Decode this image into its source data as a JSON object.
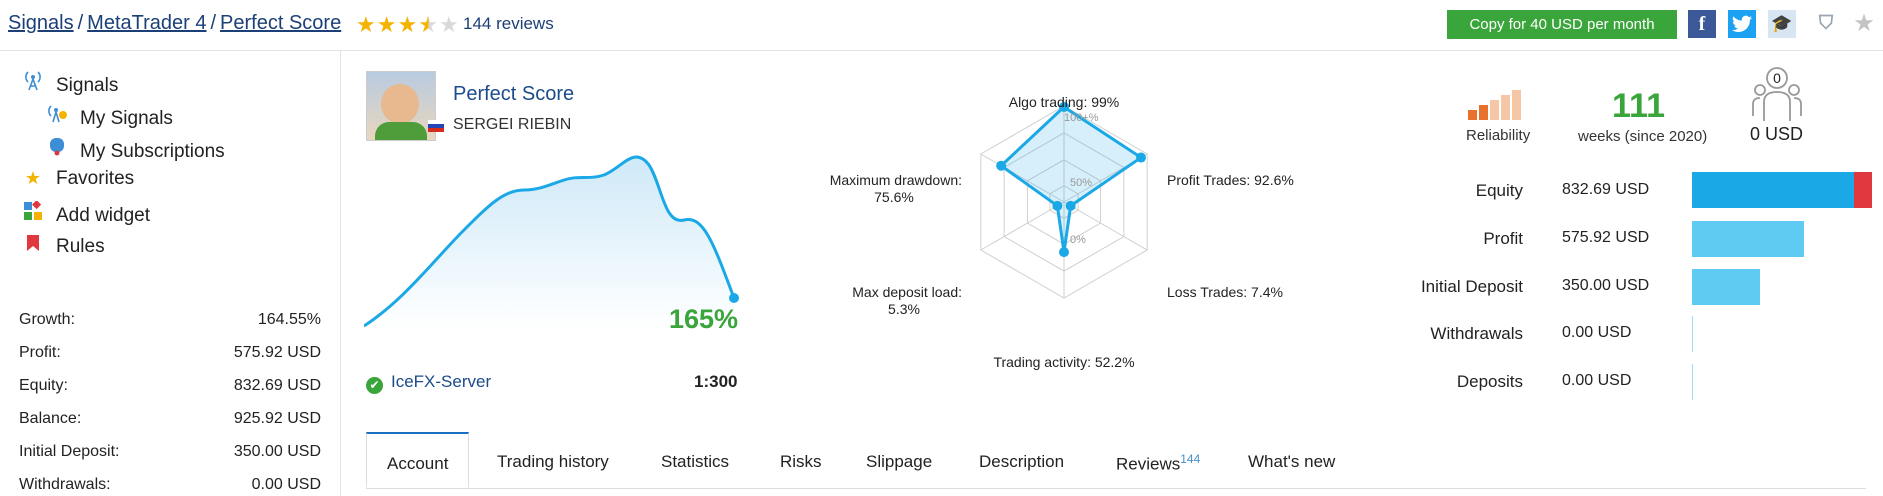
{
  "breadcrumb": {
    "items": [
      "Signals",
      "MetaTrader 4",
      "Perfect Score"
    ],
    "separator": "/"
  },
  "rating": {
    "stars": 3.5,
    "max": 5,
    "reviews_text": "144 reviews"
  },
  "copy_button": "Copy for 40 USD per month",
  "social": {
    "facebook": "f",
    "twitter": "t"
  },
  "sidebar": {
    "nav": [
      {
        "label": "Signals",
        "icon": "antenna-icon"
      },
      {
        "label": "My Signals",
        "icon": "my-signals-icon"
      },
      {
        "label": "My Subscriptions",
        "icon": "subscriptions-icon"
      },
      {
        "label": "Favorites",
        "icon": "star-icon"
      },
      {
        "label": "Add widget",
        "icon": "widget-icon"
      },
      {
        "label": "Rules",
        "icon": "bookmark-icon"
      }
    ],
    "stats": [
      {
        "label": "Growth:",
        "value": "164.55%"
      },
      {
        "label": "Profit:",
        "value": "575.92 USD"
      },
      {
        "label": "Equity:",
        "value": "832.69 USD"
      },
      {
        "label": "Balance:",
        "value": "925.92 USD"
      },
      {
        "label": "Initial Deposit:",
        "value": "350.00 USD"
      },
      {
        "label": "Withdrawals:",
        "value": "0.00 USD"
      }
    ]
  },
  "signal": {
    "title": "Perfect Score",
    "author": "SERGEI RIEBIN",
    "growth": "165%",
    "server": "IceFX-Server",
    "leverage": "1:300"
  },
  "radar": {
    "labels": {
      "algo": "Algo trading: 99%",
      "profit_trades": "Profit Trades: 92.6%",
      "loss_trades": "Loss Trades: 7.4%",
      "activity": "Trading activity: 52.2%",
      "deposit_load": "Max deposit load:",
      "deposit_load_val": "5.3%",
      "drawdown": "Maximum drawdown:",
      "drawdown_val": "75.6%"
    },
    "rings": [
      "100+%",
      "50%",
      "0%"
    ],
    "values": [
      99,
      92.6,
      7.4,
      52.2,
      5.3,
      75.6
    ]
  },
  "metrics": {
    "reliability_label": "Reliability",
    "weeks_value": "111",
    "weeks_label": "weeks (since 2020)",
    "subscribers_count": "0",
    "subscribers_usd": "0 USD"
  },
  "equity_rows": [
    {
      "label": "Equity",
      "value": "832.69 USD",
      "bar_value": 832.69
    },
    {
      "label": "Profit",
      "value": "575.92 USD",
      "bar_value": 575.92
    },
    {
      "label": "Initial Deposit",
      "value": "350.00 USD",
      "bar_value": 350.0
    },
    {
      "label": "Withdrawals",
      "value": "0.00 USD",
      "bar_value": 0
    },
    {
      "label": "Deposits",
      "value": "0.00 USD",
      "bar_value": 0
    }
  ],
  "tabs": [
    {
      "label": "Account",
      "active": true
    },
    {
      "label": "Trading history"
    },
    {
      "label": "Statistics"
    },
    {
      "label": "Risks"
    },
    {
      "label": "Slippage"
    },
    {
      "label": "Description"
    },
    {
      "label": "Reviews",
      "badge": "144"
    },
    {
      "label": "What's new"
    }
  ],
  "colors": {
    "accent": "#3aa53a",
    "link": "#1b4b8a",
    "chart": "#1ba8e6",
    "bar": "#5fcaf2",
    "bar_dark": "#1ba8e6",
    "bar_red": "#e0383e"
  }
}
